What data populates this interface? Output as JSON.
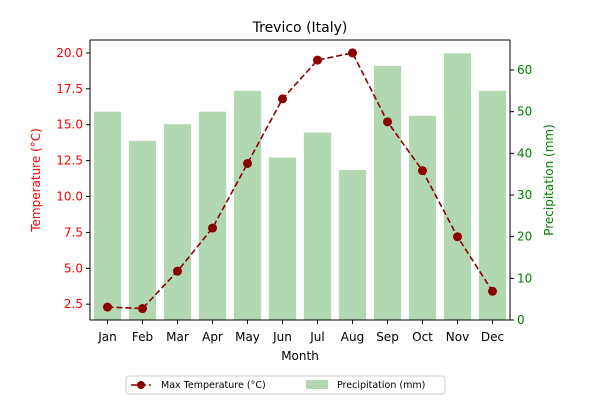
{
  "chart_data": {
    "type": "bar+line",
    "title": "Trevico (Italy)",
    "xlabel": "Month",
    "categories": [
      "Jan",
      "Feb",
      "Mar",
      "Apr",
      "May",
      "Jun",
      "Jul",
      "Aug",
      "Sep",
      "Oct",
      "Nov",
      "Dec"
    ],
    "series": [
      {
        "name": "Max Temperature (°C)",
        "type": "line",
        "axis": "left",
        "color": "#8b0000",
        "values": [
          2.3,
          2.2,
          4.8,
          7.8,
          12.3,
          16.8,
          19.5,
          20.0,
          15.2,
          11.8,
          7.2,
          3.4
        ]
      },
      {
        "name": "Precipitation (mm)",
        "type": "bar",
        "axis": "right",
        "color": "#b2d8b2",
        "values": [
          50,
          43,
          47,
          50,
          55,
          39,
          45,
          36,
          61,
          49,
          64,
          55
        ]
      }
    ],
    "left_axis": {
      "label": "Temperature (°C)",
      "color": "#ff0000",
      "ylim": [
        1.4,
        20.9
      ],
      "ticks": [
        "2.5",
        "5.0",
        "7.5",
        "10.0",
        "12.5",
        "15.0",
        "17.5",
        "20.0"
      ]
    },
    "right_axis": {
      "label": "Precipitation (mm)",
      "color": "#008000",
      "ylim": [
        0,
        67.2
      ],
      "ticks": [
        "0",
        "10",
        "20",
        "30",
        "40",
        "50",
        "60"
      ]
    },
    "legend": {
      "placement": "bottom-center",
      "entries": [
        "Max Temperature (°C)",
        "Precipitation (mm)"
      ]
    },
    "grid": false
  }
}
